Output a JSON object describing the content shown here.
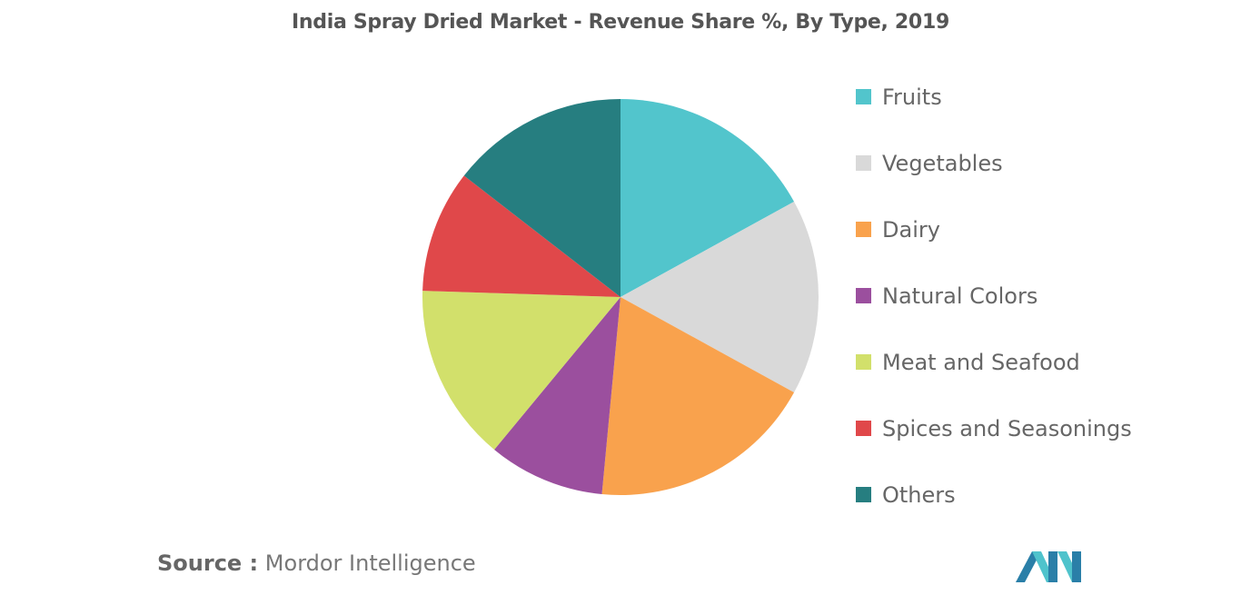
{
  "chart_data": {
    "type": "pie",
    "title": "India Spray Dried Market - Revenue Share %, By Type, 2019",
    "slices": [
      {
        "label": "Fruits",
        "value": 17,
        "color": "#52c5cc"
      },
      {
        "label": "Vegetables",
        "value": 16,
        "color": "#d9d9d9"
      },
      {
        "label": "Dairy",
        "value": 18.5,
        "color": "#f9a24d"
      },
      {
        "label": "Natural Colors",
        "value": 9.5,
        "color": "#9b4f9e"
      },
      {
        "label": "Meat and Seafood",
        "value": 14.5,
        "color": "#d2e06b"
      },
      {
        "label": "Spices and Seasonings",
        "value": 10,
        "color": "#e0484a"
      },
      {
        "label": "Others",
        "value": 14.5,
        "color": "#267e80"
      }
    ],
    "legend_position": "right"
  },
  "source": {
    "prefix": "Source :",
    "text": "Mordor Intelligence"
  },
  "logo": {
    "icon": "mordor-intelligence-logo",
    "colors": [
      "#2a7fa8",
      "#4fc3cc"
    ]
  }
}
